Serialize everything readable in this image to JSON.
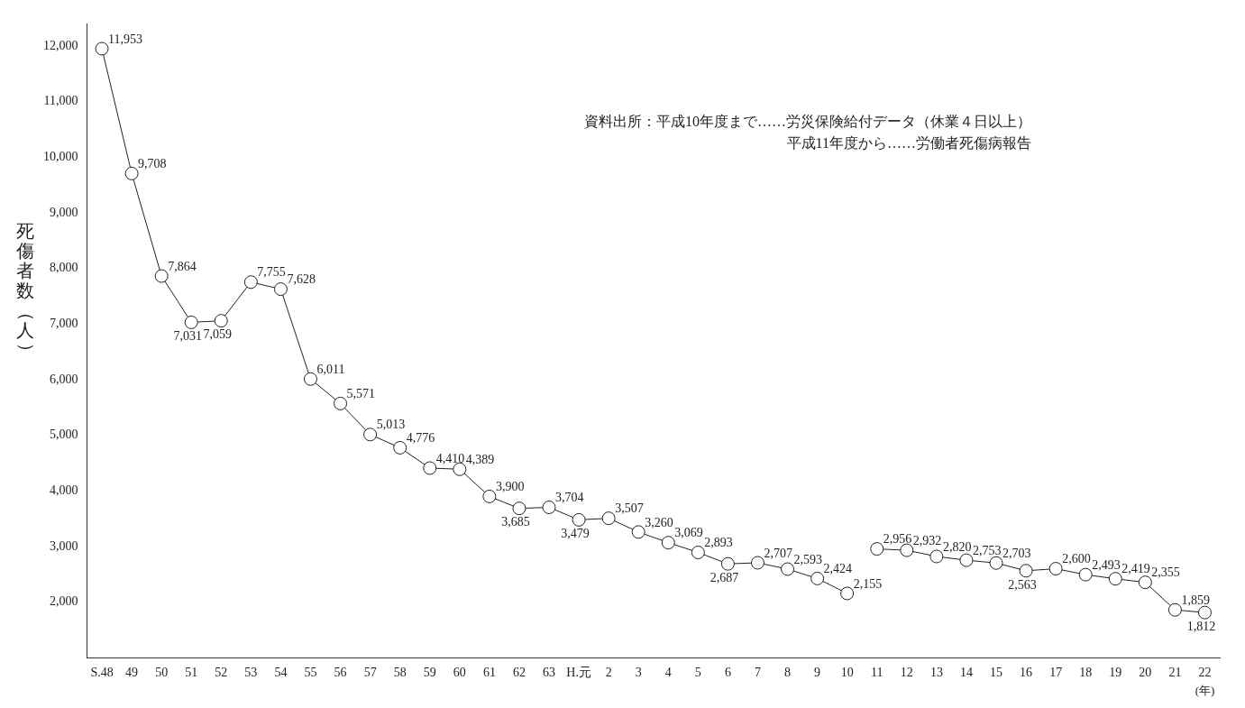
{
  "chart_data": {
    "type": "line",
    "ylabel": "死傷者数（人）",
    "xlabel": "(年)",
    "annotations": [
      "資料出所：平成10年度まで……労災保険給付データ（休業４日以上）",
      "平成11年度から……労働者死傷病報告"
    ],
    "categories": [
      "S.48",
      "49",
      "50",
      "51",
      "52",
      "53",
      "54",
      "55",
      "56",
      "57",
      "58",
      "59",
      "60",
      "61",
      "62",
      "63",
      "H.元",
      "2",
      "3",
      "4",
      "5",
      "6",
      "7",
      "8",
      "9",
      "10",
      "11",
      "12",
      "13",
      "14",
      "15",
      "16",
      "17",
      "18",
      "19",
      "20",
      "21",
      "22"
    ],
    "series": [
      {
        "color": "#222222",
        "values": [
          11953,
          9708,
          7864,
          7031,
          7059,
          7755,
          7628,
          6011,
          5571,
          5013,
          4776,
          4410,
          4389,
          3900,
          3685,
          3704,
          3479,
          3507,
          3260,
          3069,
          2893,
          2687,
          2707,
          2593,
          2424,
          2155,
          null,
          null,
          null,
          null,
          null,
          null,
          null,
          null,
          null,
          null,
          null,
          null
        ],
        "value_labels": [
          "11,953",
          "9,708",
          "7,864",
          "7,031",
          "7,059",
          "7,755",
          "7,628",
          "6,011",
          "5,571",
          "5,013",
          "4,776",
          "4,410",
          "4,389",
          "3,900",
          "3,685",
          "3,704",
          "3,479",
          "3,507",
          "3,260",
          "3,069",
          "2,893",
          "2,687",
          "2,707",
          "2,593",
          "2,424",
          "2,155",
          null,
          null,
          null,
          null,
          null,
          null,
          null,
          null,
          null,
          null,
          null,
          null
        ]
      },
      {
        "color": "#222222",
        "values": [
          null,
          null,
          null,
          null,
          null,
          null,
          null,
          null,
          null,
          null,
          null,
          null,
          null,
          null,
          null,
          null,
          null,
          null,
          null,
          null,
          null,
          null,
          null,
          null,
          null,
          null,
          2956,
          2932,
          2820,
          2753,
          2703,
          2563,
          2600,
          2493,
          2419,
          2355,
          1859,
          1812
        ],
        "value_labels": [
          null,
          null,
          null,
          null,
          null,
          null,
          null,
          null,
          null,
          null,
          null,
          null,
          null,
          null,
          null,
          null,
          null,
          null,
          null,
          null,
          null,
          null,
          null,
          null,
          null,
          null,
          "2,956",
          "2,932",
          "2,820",
          "2,753",
          "2,703",
          "2,563",
          "2,600",
          "2,493",
          "2,419",
          "2,355",
          "1,859",
          "1,812"
        ]
      }
    ],
    "ylim": [
      1000,
      12400
    ],
    "yticks": [
      {
        "value": 2000,
        "label": "2,000"
      },
      {
        "value": 3000,
        "label": "3,000"
      },
      {
        "value": 4000,
        "label": "4,000"
      },
      {
        "value": 5000,
        "label": "5,000"
      },
      {
        "value": 6000,
        "label": "6,000"
      },
      {
        "value": 7000,
        "label": "7,000"
      },
      {
        "value": 8000,
        "label": "8,000"
      },
      {
        "value": 9000,
        "label": "9,000"
      },
      {
        "value": 10000,
        "label": "10,000"
      },
      {
        "value": 11000,
        "label": "11,000"
      },
      {
        "value": 12000,
        "label": "12,000"
      }
    ],
    "grid": false,
    "legend": false,
    "marker": "circle",
    "line_style": "solid"
  }
}
